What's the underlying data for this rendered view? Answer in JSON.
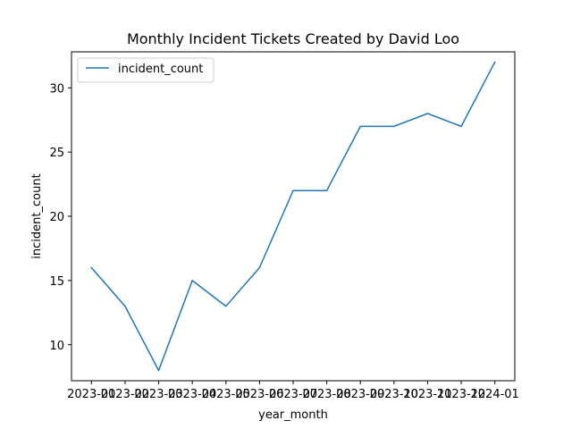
{
  "chart_data": {
    "type": "line",
    "title": "Monthly Incident Tickets Created by David Loo",
    "xlabel": "year_month",
    "ylabel": "incident_count",
    "categories": [
      "2023-01",
      "2023-02",
      "2023-03",
      "2023-04",
      "2023-05",
      "2023-06",
      "2023-07",
      "2023-08",
      "2023-09",
      "2023-10",
      "2023-11",
      "2023-12",
      "2024-01"
    ],
    "series": [
      {
        "name": "incident_count",
        "values": [
          16,
          13,
          8,
          15,
          13,
          16,
          22,
          22,
          27,
          27,
          28,
          27,
          32
        ],
        "color": "#1f77b4"
      }
    ],
    "yticks": [
      10,
      15,
      20,
      25,
      30
    ],
    "ylim": [
      7.2,
      32.8
    ],
    "grid": false,
    "legend_position": "upper-left"
  }
}
